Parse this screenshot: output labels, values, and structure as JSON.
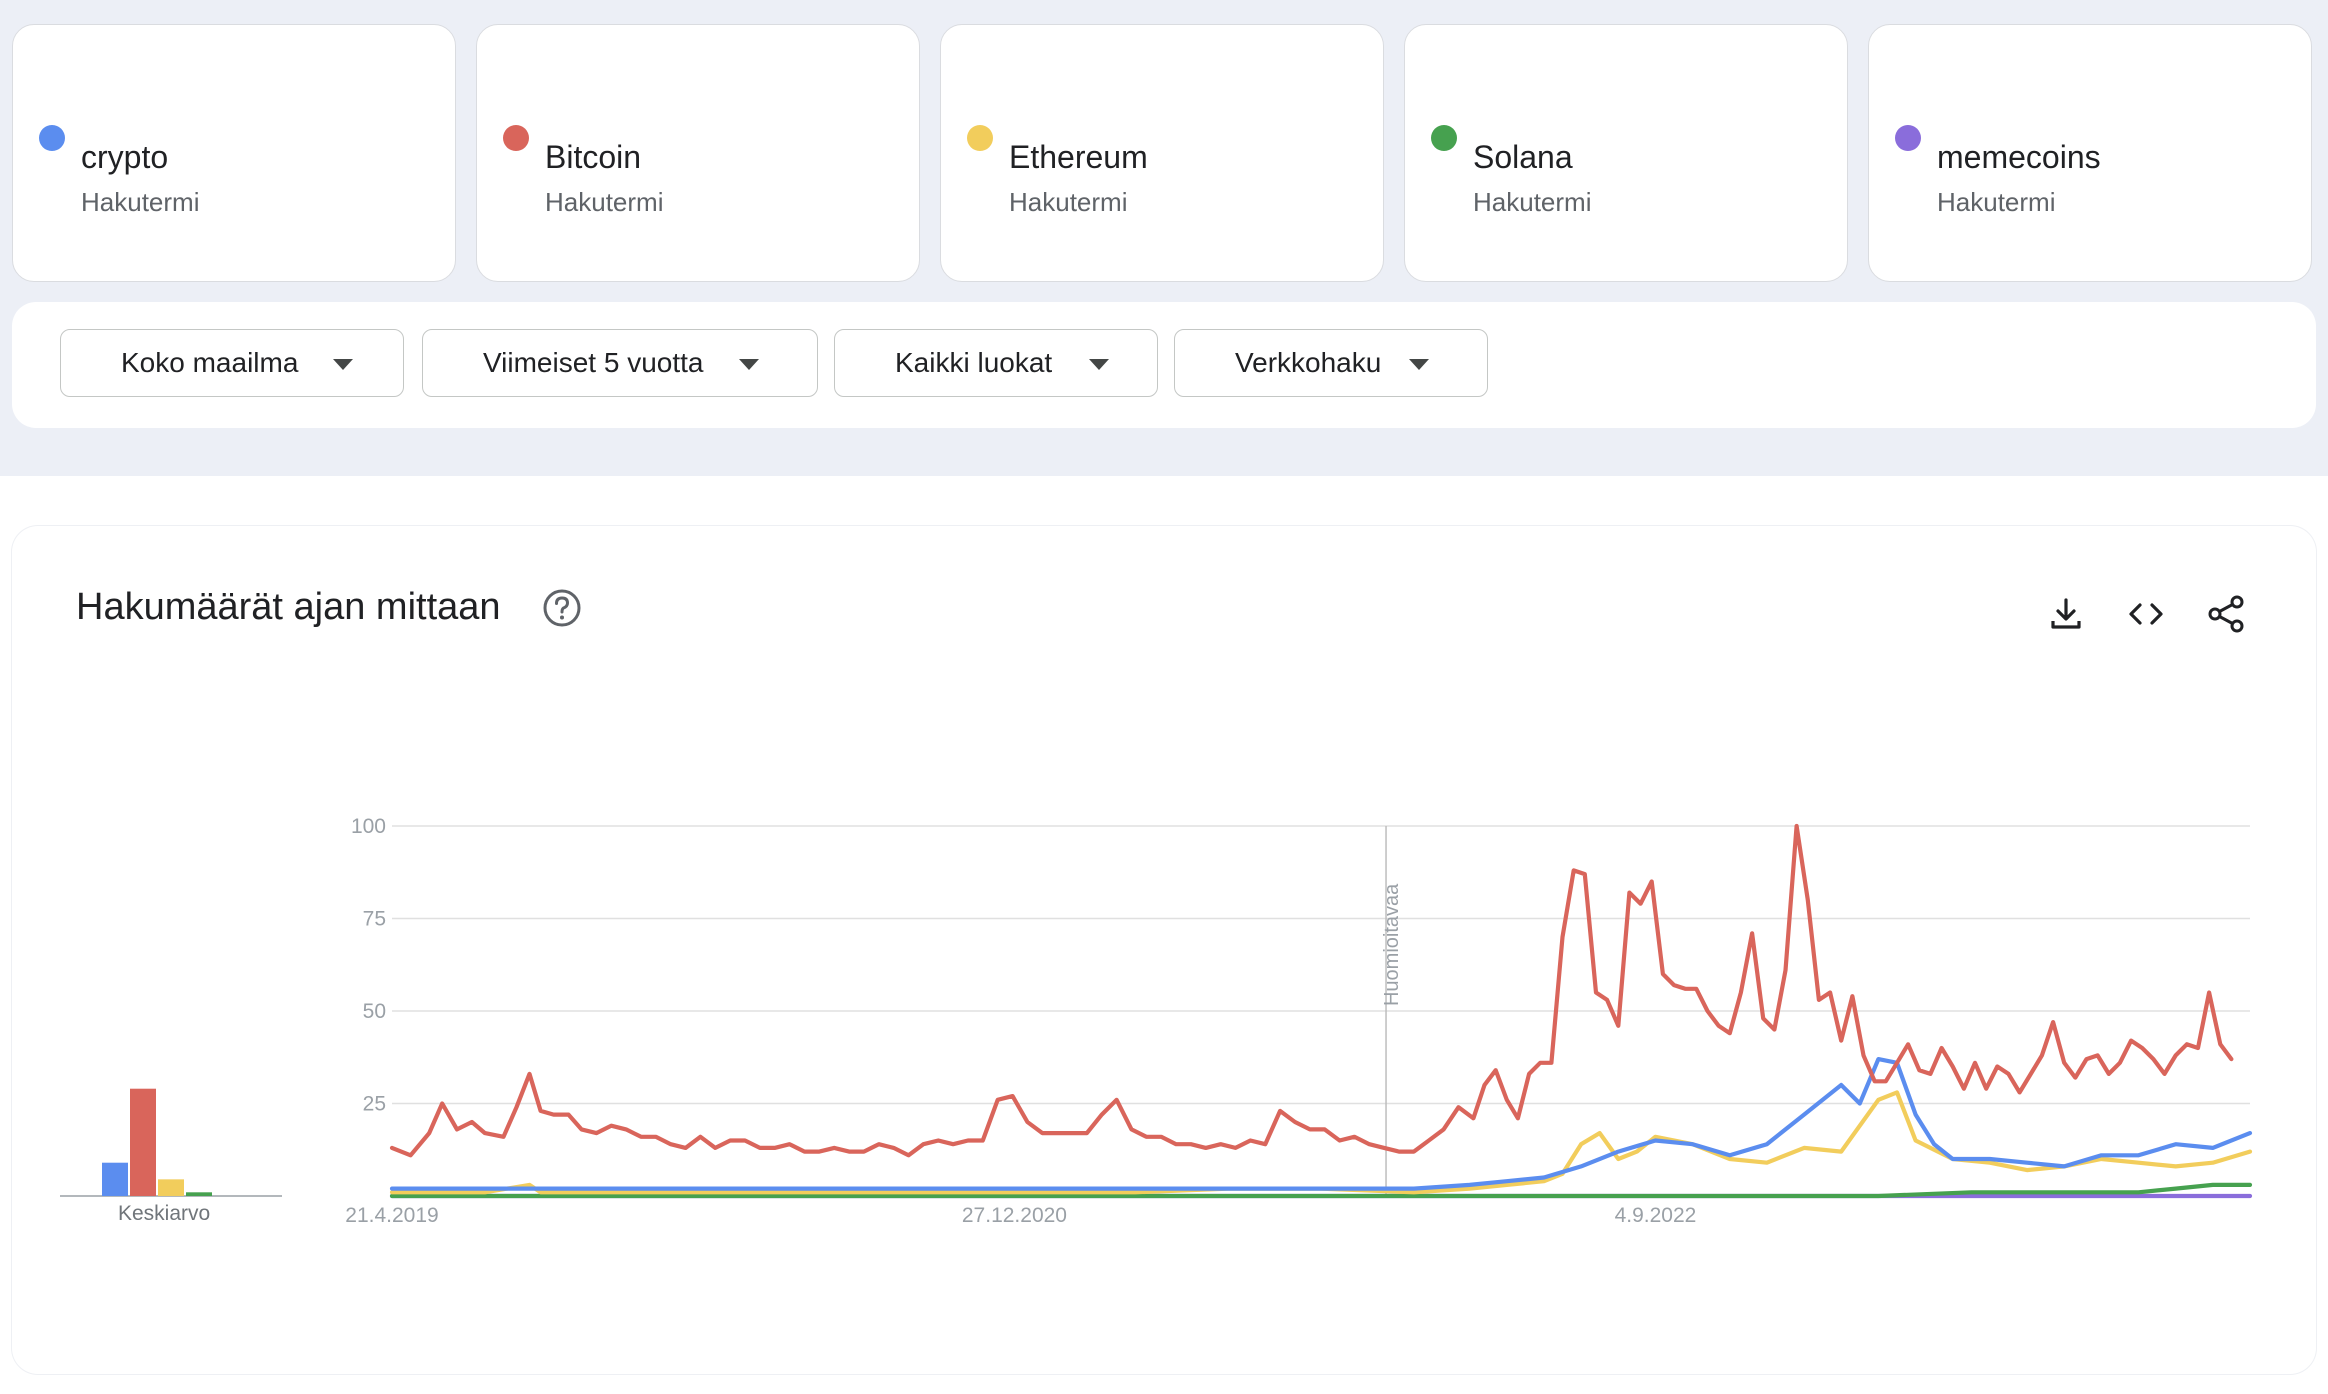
{
  "terms": [
    {
      "name": "crypto",
      "sub": "Hakutermi",
      "color": "#5b8def"
    },
    {
      "name": "Bitcoin",
      "sub": "Hakutermi",
      "color": "#d9655b"
    },
    {
      "name": "Ethereum",
      "sub": "Hakutermi",
      "color": "#f2cd5c"
    },
    {
      "name": "Solana",
      "sub": "Hakutermi",
      "color": "#46a14f"
    },
    {
      "name": "memecoins",
      "sub": "Hakutermi",
      "color": "#8a6ddb"
    }
  ],
  "filters": {
    "region": "Koko maailma",
    "time": "Viimeiset 5 vuotta",
    "category": "Kaikki luokat",
    "search_type": "Verkkohaku"
  },
  "panel": {
    "title": "Hakumäärät ajan mittaan",
    "icons": [
      "help-icon",
      "download-icon",
      "embed-icon",
      "share-icon"
    ],
    "average_label": "Keskiarvo",
    "annotation": "Huomioitavaa"
  },
  "chart_data": {
    "type": "line",
    "x_ticks": [
      "21.4.2019",
      "27.12.2020",
      "4.9.2022"
    ],
    "y_ticks": [
      "100",
      "75",
      "50",
      "25"
    ],
    "ylim": [
      0,
      100
    ],
    "grid": true,
    "averages": [
      {
        "name": "crypto",
        "value": 9
      },
      {
        "name": "Bitcoin",
        "value": 29
      },
      {
        "name": "Ethereum",
        "value": 4.5
      },
      {
        "name": "Solana",
        "value": 1
      },
      {
        "name": "memecoins",
        "value": 0
      }
    ],
    "series": [
      {
        "name": "Bitcoin",
        "color": "#d9655b",
        "points": [
          [
            0,
            13
          ],
          [
            0.01,
            11
          ],
          [
            0.02,
            17
          ],
          [
            0.027,
            25
          ],
          [
            0.035,
            18
          ],
          [
            0.043,
            20
          ],
          [
            0.05,
            17
          ],
          [
            0.06,
            16
          ],
          [
            0.067,
            24
          ],
          [
            0.074,
            33
          ],
          [
            0.08,
            23
          ],
          [
            0.087,
            22
          ],
          [
            0.095,
            22
          ],
          [
            0.102,
            18
          ],
          [
            0.11,
            17
          ],
          [
            0.118,
            19
          ],
          [
            0.126,
            18
          ],
          [
            0.134,
            16
          ],
          [
            0.142,
            16
          ],
          [
            0.15,
            14
          ],
          [
            0.158,
            13
          ],
          [
            0.166,
            16
          ],
          [
            0.174,
            13
          ],
          [
            0.182,
            15
          ],
          [
            0.19,
            15
          ],
          [
            0.198,
            13
          ],
          [
            0.206,
            13
          ],
          [
            0.214,
            14
          ],
          [
            0.222,
            12
          ],
          [
            0.23,
            12
          ],
          [
            0.238,
            13
          ],
          [
            0.246,
            12
          ],
          [
            0.254,
            12
          ],
          [
            0.262,
            14
          ],
          [
            0.27,
            13
          ],
          [
            0.278,
            11
          ],
          [
            0.286,
            14
          ],
          [
            0.294,
            15
          ],
          [
            0.302,
            14
          ],
          [
            0.31,
            15
          ],
          [
            0.318,
            15
          ],
          [
            0.326,
            26
          ],
          [
            0.334,
            27
          ],
          [
            0.342,
            20
          ],
          [
            0.35,
            17
          ],
          [
            0.358,
            17
          ],
          [
            0.366,
            17
          ],
          [
            0.374,
            17
          ],
          [
            0.382,
            22
          ],
          [
            0.39,
            26
          ],
          [
            0.398,
            18
          ],
          [
            0.406,
            16
          ],
          [
            0.414,
            16
          ],
          [
            0.422,
            14
          ],
          [
            0.43,
            14
          ],
          [
            0.438,
            13
          ],
          [
            0.446,
            14
          ],
          [
            0.454,
            13
          ],
          [
            0.462,
            15
          ],
          [
            0.47,
            14
          ],
          [
            0.478,
            23
          ],
          [
            0.486,
            20
          ],
          [
            0.494,
            18
          ],
          [
            0.502,
            18
          ],
          [
            0.51,
            15
          ],
          [
            0.518,
            16
          ],
          [
            0.526,
            14
          ],
          [
            0.534,
            13
          ],
          [
            0.542,
            12
          ],
          [
            0.55,
            12
          ],
          [
            0.558,
            15
          ],
          [
            0.566,
            18
          ],
          [
            0.574,
            24
          ],
          [
            0.582,
            21
          ],
          [
            0.588,
            30
          ],
          [
            0.594,
            34
          ],
          [
            0.6,
            26
          ],
          [
            0.606,
            21
          ],
          [
            0.612,
            33
          ],
          [
            0.618,
            36
          ],
          [
            0.624,
            36
          ],
          [
            0.63,
            70
          ],
          [
            0.636,
            88
          ],
          [
            0.642,
            87
          ],
          [
            0.648,
            55
          ],
          [
            0.654,
            53
          ],
          [
            0.66,
            46
          ],
          [
            0.666,
            82
          ],
          [
            0.672,
            79
          ],
          [
            0.678,
            85
          ],
          [
            0.684,
            60
          ],
          [
            0.69,
            57
          ],
          [
            0.696,
            56
          ],
          [
            0.702,
            56
          ],
          [
            0.708,
            50
          ],
          [
            0.714,
            46
          ],
          [
            0.72,
            44
          ],
          [
            0.726,
            55
          ],
          [
            0.732,
            71
          ],
          [
            0.738,
            48
          ],
          [
            0.744,
            45
          ],
          [
            0.75,
            61
          ],
          [
            0.756,
            100
          ],
          [
            0.762,
            80
          ],
          [
            0.768,
            53
          ],
          [
            0.774,
            55
          ],
          [
            0.78,
            42
          ],
          [
            0.786,
            54
          ],
          [
            0.792,
            38
          ],
          [
            0.798,
            31
          ],
          [
            0.804,
            31
          ],
          [
            0.81,
            36
          ],
          [
            0.816,
            41
          ],
          [
            0.822,
            34
          ],
          [
            0.828,
            33
          ],
          [
            0.834,
            40
          ],
          [
            0.84,
            35
          ],
          [
            0.846,
            29
          ],
          [
            0.852,
            36
          ],
          [
            0.858,
            29
          ],
          [
            0.864,
            35
          ],
          [
            0.87,
            33
          ],
          [
            0.876,
            28
          ],
          [
            0.882,
            33
          ],
          [
            0.888,
            38
          ],
          [
            0.894,
            47
          ],
          [
            0.9,
            36
          ],
          [
            0.906,
            32
          ],
          [
            0.912,
            37
          ],
          [
            0.918,
            38
          ],
          [
            0.924,
            33
          ],
          [
            0.93,
            36
          ],
          [
            0.936,
            42
          ],
          [
            0.942,
            40
          ],
          [
            0.948,
            37
          ],
          [
            0.954,
            33
          ],
          [
            0.96,
            38
          ],
          [
            0.966,
            41
          ],
          [
            0.972,
            40
          ],
          [
            0.978,
            55
          ],
          [
            0.984,
            41
          ],
          [
            0.99,
            37
          ]
        ]
      },
      {
        "name": "crypto",
        "color": "#5b8def",
        "points": [
          [
            0,
            2
          ],
          [
            0.05,
            2
          ],
          [
            0.1,
            2
          ],
          [
            0.15,
            2
          ],
          [
            0.2,
            2
          ],
          [
            0.25,
            2
          ],
          [
            0.3,
            2
          ],
          [
            0.35,
            2
          ],
          [
            0.4,
            2
          ],
          [
            0.45,
            2
          ],
          [
            0.5,
            2
          ],
          [
            0.55,
            2
          ],
          [
            0.58,
            3
          ],
          [
            0.6,
            4
          ],
          [
            0.62,
            5
          ],
          [
            0.64,
            8
          ],
          [
            0.66,
            12
          ],
          [
            0.68,
            15
          ],
          [
            0.7,
            14
          ],
          [
            0.72,
            11
          ],
          [
            0.74,
            14
          ],
          [
            0.76,
            22
          ],
          [
            0.78,
            30
          ],
          [
            0.79,
            25
          ],
          [
            0.8,
            37
          ],
          [
            0.81,
            36
          ],
          [
            0.82,
            22
          ],
          [
            0.83,
            14
          ],
          [
            0.84,
            10
          ],
          [
            0.86,
            10
          ],
          [
            0.88,
            9
          ],
          [
            0.9,
            8
          ],
          [
            0.92,
            11
          ],
          [
            0.94,
            11
          ],
          [
            0.96,
            14
          ],
          [
            0.98,
            13
          ],
          [
            1,
            17
          ]
        ]
      },
      {
        "name": "Ethereum",
        "color": "#f2cd5c",
        "points": [
          [
            0,
            1
          ],
          [
            0.05,
            1
          ],
          [
            0.074,
            3
          ],
          [
            0.08,
            1
          ],
          [
            0.2,
            1
          ],
          [
            0.3,
            1
          ],
          [
            0.4,
            1
          ],
          [
            0.45,
            2
          ],
          [
            0.5,
            2
          ],
          [
            0.55,
            1
          ],
          [
            0.58,
            2
          ],
          [
            0.6,
            3
          ],
          [
            0.62,
            4
          ],
          [
            0.63,
            6
          ],
          [
            0.64,
            14
          ],
          [
            0.65,
            17
          ],
          [
            0.66,
            10
          ],
          [
            0.67,
            12
          ],
          [
            0.68,
            16
          ],
          [
            0.7,
            14
          ],
          [
            0.72,
            10
          ],
          [
            0.74,
            9
          ],
          [
            0.76,
            13
          ],
          [
            0.78,
            12
          ],
          [
            0.8,
            26
          ],
          [
            0.81,
            28
          ],
          [
            0.82,
            15
          ],
          [
            0.84,
            10
          ],
          [
            0.86,
            9
          ],
          [
            0.88,
            7
          ],
          [
            0.9,
            8
          ],
          [
            0.92,
            10
          ],
          [
            0.94,
            9
          ],
          [
            0.96,
            8
          ],
          [
            0.98,
            9
          ],
          [
            1,
            12
          ]
        ]
      },
      {
        "name": "Solana",
        "color": "#46a14f",
        "points": [
          [
            0,
            0
          ],
          [
            0.2,
            0
          ],
          [
            0.4,
            0
          ],
          [
            0.6,
            0
          ],
          [
            0.75,
            0
          ],
          [
            0.8,
            0
          ],
          [
            0.85,
            1
          ],
          [
            0.88,
            1
          ],
          [
            0.9,
            1
          ],
          [
            0.92,
            1
          ],
          [
            0.94,
            1
          ],
          [
            0.96,
            2
          ],
          [
            0.98,
            3
          ],
          [
            1,
            3
          ]
        ]
      },
      {
        "name": "memecoins",
        "color": "#8a6ddb",
        "points": [
          [
            0,
            0
          ],
          [
            1,
            0
          ]
        ]
      }
    ]
  }
}
